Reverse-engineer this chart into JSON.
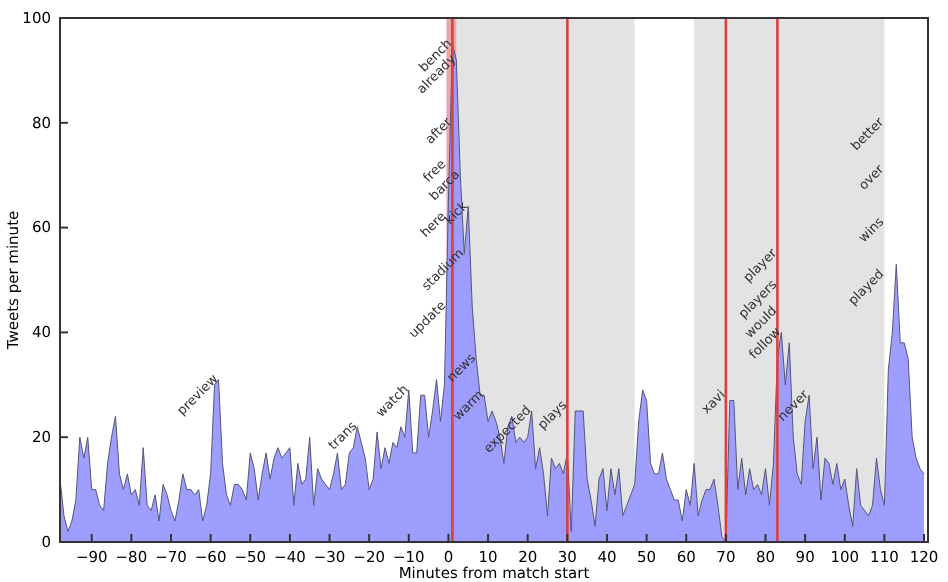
{
  "chart_data": {
    "type": "area",
    "xlabel": "Minutes from match start",
    "ylabel": "Tweets per minute",
    "xlim": [
      -98,
      121
    ],
    "ylim": [
      0,
      100
    ],
    "xticks": [
      -90,
      -80,
      -70,
      -60,
      -50,
      -40,
      -30,
      -20,
      -10,
      0,
      10,
      20,
      30,
      40,
      50,
      60,
      70,
      80,
      90,
      100,
      110,
      120
    ],
    "yticks": [
      0,
      20,
      40,
      60,
      80,
      100
    ],
    "grid": false,
    "x": [
      -98,
      -97,
      -96,
      -95,
      -94,
      -93,
      -92,
      -91,
      -90,
      -89,
      -88,
      -87,
      -86,
      -85,
      -84,
      -83,
      -82,
      -81,
      -80,
      -79,
      -78,
      -77,
      -76,
      -75,
      -74,
      -73,
      -72,
      -71,
      -70,
      -69,
      -68,
      -67,
      -66,
      -65,
      -64,
      -63,
      -62,
      -61,
      -60,
      -59,
      -58,
      -57,
      -56,
      -55,
      -54,
      -53,
      -52,
      -51,
      -50,
      -49,
      -48,
      -47,
      -46,
      -45,
      -44,
      -43,
      -42,
      -41,
      -40,
      -39,
      -38,
      -37,
      -36,
      -35,
      -34,
      -33,
      -32,
      -31,
      -30,
      -29,
      -28,
      -27,
      -26,
      -25,
      -24,
      -23,
      -22,
      -21,
      -20,
      -19,
      -18,
      -17,
      -16,
      -15,
      -14,
      -13,
      -12,
      -11,
      -10,
      -9,
      -8,
      -7,
      -6,
      -5,
      -4,
      -3,
      -2,
      -1,
      0,
      1,
      2,
      3,
      4,
      5,
      6,
      7,
      8,
      9,
      10,
      11,
      12,
      13,
      14,
      15,
      16,
      17,
      18,
      19,
      20,
      21,
      22,
      23,
      24,
      25,
      26,
      27,
      28,
      29,
      30,
      31,
      32,
      33,
      34,
      35,
      36,
      37,
      38,
      39,
      40,
      41,
      42,
      43,
      44,
      45,
      46,
      47,
      48,
      49,
      50,
      51,
      52,
      53,
      54,
      55,
      56,
      57,
      58,
      59,
      60,
      61,
      62,
      63,
      64,
      65,
      66,
      67,
      68,
      69,
      70,
      71,
      72,
      73,
      74,
      75,
      76,
      77,
      78,
      79,
      80,
      81,
      82,
      83,
      84,
      85,
      86,
      87,
      88,
      89,
      90,
      91,
      92,
      93,
      94,
      95,
      96,
      97,
      98,
      99,
      100,
      101,
      102,
      103,
      104,
      105,
      106,
      107,
      108,
      109,
      110,
      111,
      112,
      113,
      114,
      115,
      116,
      117,
      118,
      119,
      120
    ],
    "series": [
      {
        "color": "#9999ff",
        "values": [
          12,
          5,
          2,
          4,
          8,
          20,
          16,
          20,
          10,
          10,
          7,
          6,
          15,
          20,
          24,
          13,
          10,
          13,
          9,
          10,
          7,
          18,
          7,
          6,
          9,
          4,
          11,
          9,
          6,
          4,
          8,
          13,
          10,
          10,
          9,
          10,
          4,
          7,
          13,
          30,
          31,
          15,
          9,
          7,
          11,
          11,
          10,
          8,
          17,
          14,
          8,
          13,
          17,
          12,
          16,
          18,
          16,
          17,
          18,
          7,
          15,
          11,
          12,
          20,
          7,
          14,
          12,
          11,
          10,
          13,
          17,
          10,
          11,
          17,
          18,
          22,
          19,
          16,
          10,
          12,
          21,
          14,
          18,
          15,
          19,
          18,
          22,
          20,
          29,
          17,
          17,
          28,
          28,
          20,
          25,
          31,
          23,
          30,
          65,
          95,
          92,
          70,
          55,
          64,
          45,
          35,
          28,
          28,
          23,
          25,
          23,
          20,
          15,
          22,
          24,
          19,
          20,
          19,
          20,
          25,
          14,
          18,
          13,
          5,
          16,
          14,
          15,
          13,
          17,
          2,
          25,
          25,
          25,
          12,
          8,
          3,
          12,
          14,
          6,
          14,
          9,
          14,
          5,
          7,
          9,
          11,
          23,
          29,
          27,
          15,
          13,
          13,
          17,
          12,
          10,
          8,
          8,
          4,
          10,
          7,
          15,
          5,
          8,
          10,
          10,
          12,
          7,
          1,
          0,
          27,
          27,
          10,
          16,
          9,
          14,
          10,
          11,
          9,
          14,
          7,
          15,
          35,
          40,
          30,
          38,
          20,
          13,
          11,
          23,
          28,
          14,
          20,
          8,
          16,
          15,
          11,
          15,
          10,
          12,
          7,
          3,
          14,
          7,
          6,
          5,
          7,
          16,
          10,
          7,
          33,
          40,
          53,
          38,
          38,
          35,
          20,
          16,
          14,
          13
        ]
      }
    ],
    "bands": [
      {
        "axis": "x",
        "from": 1,
        "to": 47,
        "color": "#e3e3e3"
      },
      {
        "axis": "x",
        "from": 62,
        "to": 110,
        "color": "#e3e3e3"
      },
      {
        "axis": "x",
        "from": -0.5,
        "to": 2,
        "color": "#e8a8a8"
      }
    ],
    "ref_lines": [
      {
        "axis": "x",
        "value": 1,
        "color": "#d94040"
      },
      {
        "axis": "x",
        "value": 30,
        "color": "#d94040"
      },
      {
        "axis": "x",
        "value": 70,
        "color": "#d94040"
      },
      {
        "axis": "x",
        "value": 83,
        "color": "#d94040"
      }
    ],
    "annotations": [
      {
        "text": "preview",
        "x": -58,
        "y": 31
      },
      {
        "text": "trans",
        "x": -23,
        "y": 22
      },
      {
        "text": "watch",
        "x": -10,
        "y": 29
      },
      {
        "text": "bench",
        "x": 1,
        "y": 95
      },
      {
        "text": "already",
        "x": 2,
        "y": 92
      },
      {
        "text": "after",
        "x": 1,
        "y": 80
      },
      {
        "text": "free",
        "x": -0.5,
        "y": 72
      },
      {
        "text": "barca",
        "x": 3,
        "y": 70
      },
      {
        "text": "here",
        "x": -0.5,
        "y": 62
      },
      {
        "text": "kick",
        "x": 5,
        "y": 64
      },
      {
        "text": "update",
        "x": -0.5,
        "y": 45
      },
      {
        "text": "stadium",
        "x": 4,
        "y": 55
      },
      {
        "text": "news",
        "x": 7,
        "y": 35
      },
      {
        "text": "warm",
        "x": 9,
        "y": 28
      },
      {
        "text": "expected",
        "x": 21,
        "y": 25
      },
      {
        "text": "plays",
        "x": 30,
        "y": 26
      },
      {
        "text": "xavi",
        "x": 70,
        "y": 28
      },
      {
        "text": "player",
        "x": 83,
        "y": 55
      },
      {
        "text": "would",
        "x": 83,
        "y": 44
      },
      {
        "text": "players",
        "x": 83,
        "y": 49
      },
      {
        "text": "follow",
        "x": 84,
        "y": 40
      },
      {
        "text": "never",
        "x": 91,
        "y": 28
      },
      {
        "text": "better",
        "x": 110,
        "y": 80
      },
      {
        "text": "over",
        "x": 110,
        "y": 71
      },
      {
        "text": "wins",
        "x": 110,
        "y": 61
      },
      {
        "text": "played",
        "x": 110,
        "y": 51
      }
    ]
  }
}
